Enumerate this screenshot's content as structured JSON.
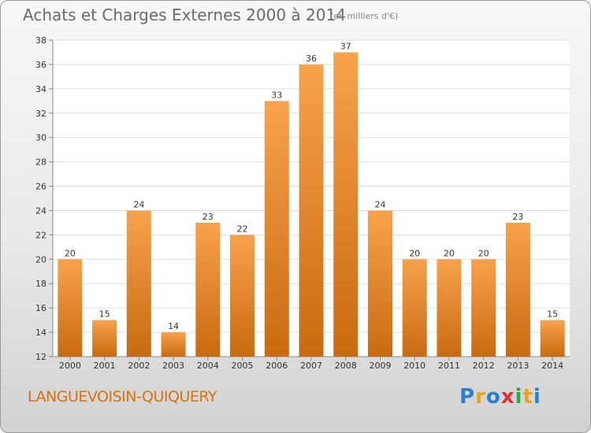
{
  "title": "Achats et Charges Externes 2000 à 2014",
  "subtitle": "(en milliers d'€)",
  "location": "LANGUEVOISIN-QUIQUERY",
  "logo_text": "Proxiti",
  "colors": {
    "bar_top": "#f7a24c",
    "bar_bottom": "#c96a10",
    "grid": "#dddddd",
    "axis": "#888888",
    "location": "#d7720c"
  },
  "chart_data": {
    "type": "bar",
    "categories": [
      "2000",
      "2001",
      "2002",
      "2003",
      "2004",
      "2005",
      "2006",
      "2007",
      "2008",
      "2009",
      "2010",
      "2011",
      "2012",
      "2013",
      "2014"
    ],
    "values": [
      20,
      15,
      24,
      14,
      23,
      22,
      33,
      36,
      37,
      24,
      20,
      20,
      20,
      23,
      15
    ],
    "title": "Achats et Charges Externes 2000 à 2014",
    "subtitle": "(en milliers d'€)",
    "ylim": [
      12,
      38
    ],
    "yticks": [
      12,
      14,
      16,
      18,
      20,
      22,
      24,
      26,
      28,
      30,
      32,
      34,
      36,
      38
    ],
    "grid": true,
    "data_labels": true
  }
}
